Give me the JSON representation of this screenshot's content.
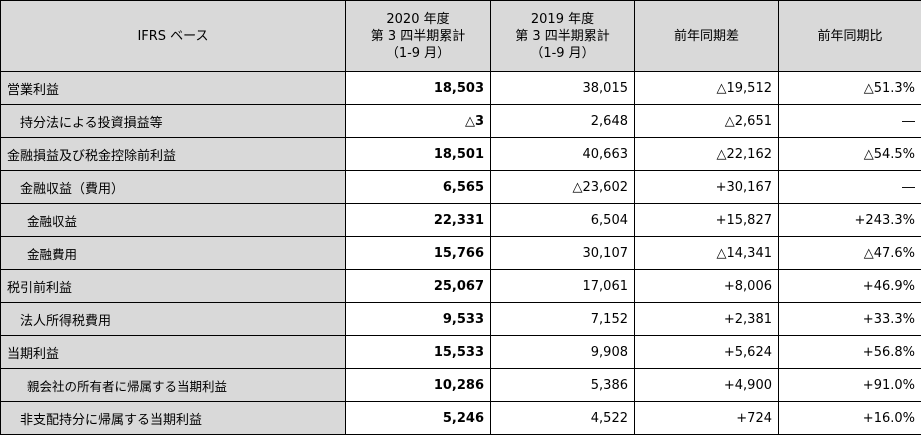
{
  "header": {
    "basis": "IFRS ベース",
    "col_2020": [
      "2020 年度",
      "第 3 四半期累計",
      "（1-9 月）"
    ],
    "col_2019": [
      "2019 年度",
      "第 3 四半期累計",
      "（1-9 月）"
    ],
    "col_diff": "前年同期差",
    "col_ratio": "前年同期比"
  },
  "rows": [
    {
      "label": "営業利益",
      "v2020": "18,503",
      "v2019": "38,015",
      "diff": "△19,512",
      "ratio": "△51.3%"
    },
    {
      "label": "持分法による投資損益等",
      "v2020": "△3",
      "v2019": "2,648",
      "diff": "△2,651",
      "ratio": "―"
    },
    {
      "label": "金融損益及び税金控除前利益",
      "v2020": "18,501",
      "v2019": "40,663",
      "diff": "△22,162",
      "ratio": "△54.5%"
    },
    {
      "label": "金融収益（費用）",
      "v2020": "6,565",
      "v2019": "△23,602",
      "diff": "+30,167",
      "ratio": "―"
    },
    {
      "label": "金融収益",
      "v2020": "22,331",
      "v2019": "6,504",
      "diff": "+15,827",
      "ratio": "+243.3%"
    },
    {
      "label": "金融費用",
      "v2020": "15,766",
      "v2019": "30,107",
      "diff": "△14,341",
      "ratio": "△47.6%"
    },
    {
      "label": "税引前利益",
      "v2020": "25,067",
      "v2019": "17,061",
      "diff": "+8,006",
      "ratio": "+46.9%"
    },
    {
      "label": "法人所得税費用",
      "v2020": "9,533",
      "v2019": "7,152",
      "diff": "+2,381",
      "ratio": "+33.3%"
    },
    {
      "label": "当期利益",
      "v2020": "15,533",
      "v2019": "9,908",
      "diff": "+5,624",
      "ratio": "+56.8%"
    },
    {
      "label": "親会社の所有者に帰属する当期利益",
      "v2020": "10,286",
      "v2019": "5,386",
      "diff": "+4,900",
      "ratio": "+91.0%"
    },
    {
      "label": "非支配持分に帰属する当期利益",
      "v2020": "5,246",
      "v2019": "4,522",
      "diff": "+724",
      "ratio": "+16.0%"
    }
  ]
}
